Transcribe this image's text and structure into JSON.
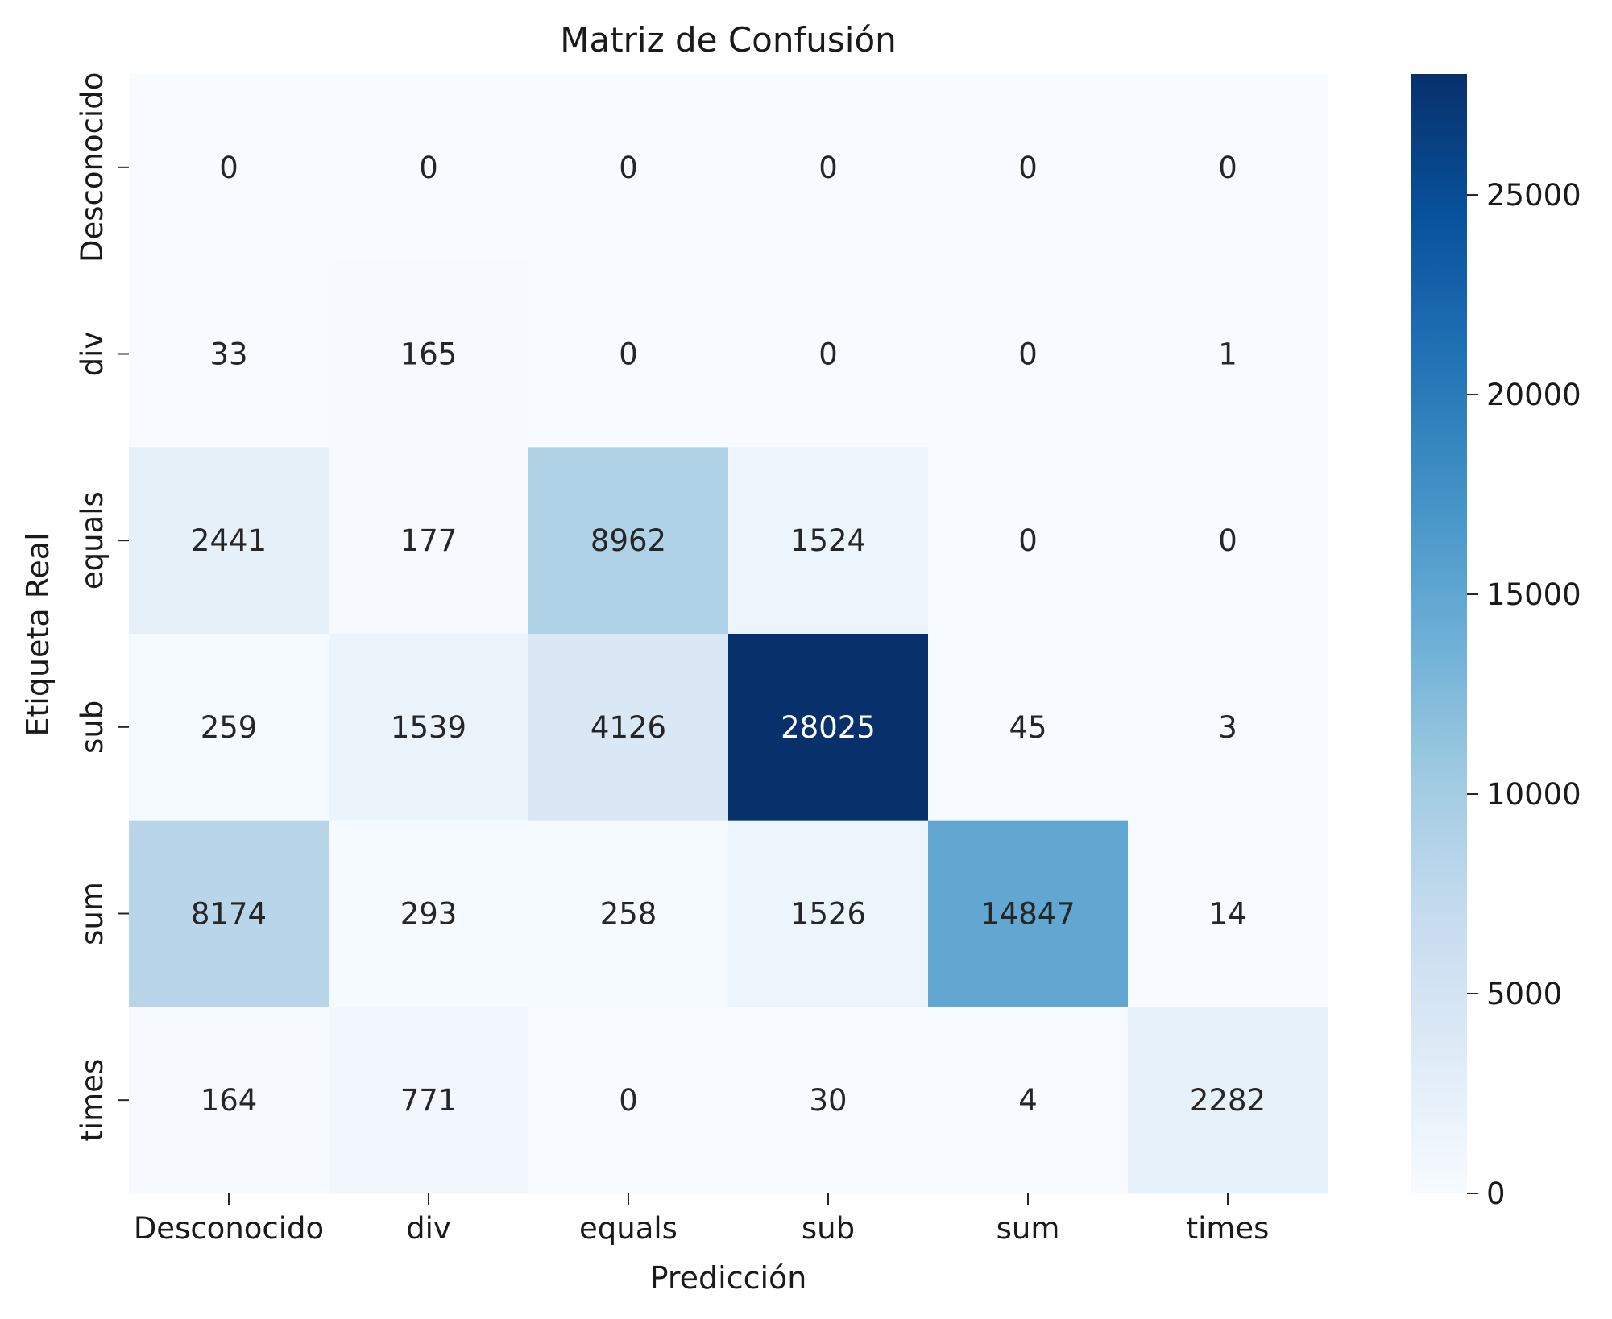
{
  "chart_data": {
    "type": "heatmap",
    "title": "Matriz de Confusión",
    "xlabel": "Predicción",
    "ylabel": "Etiqueta Real",
    "x_categories": [
      "Desconocido",
      "div",
      "equals",
      "sub",
      "sum",
      "times"
    ],
    "y_categories": [
      "Desconocido",
      "div",
      "equals",
      "sub",
      "sum",
      "times"
    ],
    "values": [
      [
        0,
        0,
        0,
        0,
        0,
        0
      ],
      [
        33,
        165,
        0,
        0,
        0,
        1
      ],
      [
        2441,
        177,
        8962,
        1524,
        0,
        0
      ],
      [
        259,
        1539,
        4126,
        28025,
        45,
        3
      ],
      [
        8174,
        293,
        258,
        1526,
        14847,
        14
      ],
      [
        164,
        771,
        0,
        30,
        4,
        2282
      ]
    ],
    "colorscale": "Blues",
    "vmin": 0,
    "vmax": 28025,
    "colorbar_ticks": [
      0,
      5000,
      10000,
      15000,
      20000,
      25000
    ],
    "colors": {
      "text_dark": "#262626",
      "text_light": "#ffffff"
    }
  }
}
